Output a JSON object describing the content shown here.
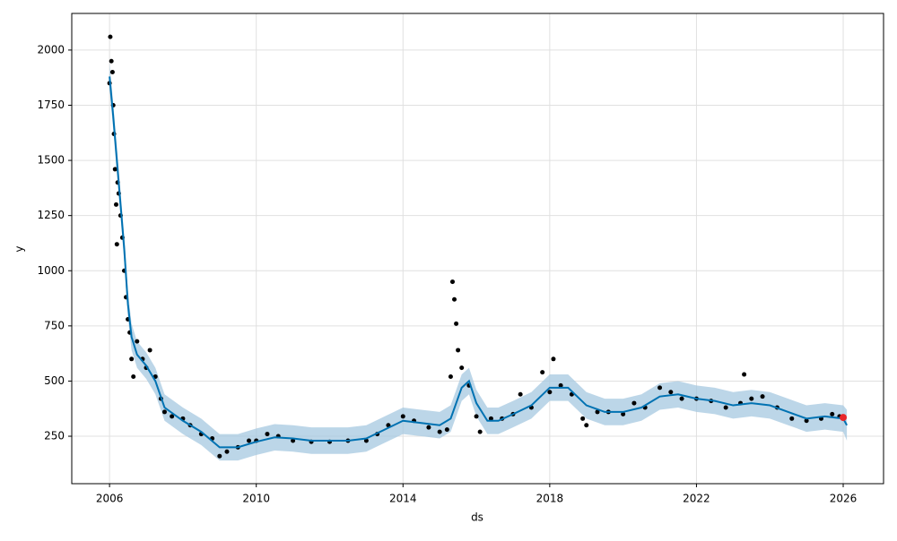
{
  "chart_data": {
    "type": "forecast",
    "x_label": "ds",
    "y_label": "y",
    "xlim": [
      2004.97,
      2027.1
    ],
    "ylim": [
      35,
      2166
    ],
    "xticks": [
      2006,
      2010,
      2014,
      2018,
      2022,
      2026
    ],
    "yticks": [
      250,
      500,
      750,
      1000,
      1250,
      1500,
      1750,
      2000
    ],
    "grid": true,
    "points": {
      "color": "#000000",
      "x": [
        2006.0,
        2006.02,
        2006.05,
        2006.08,
        2006.1,
        2006.12,
        2006.15,
        2006.18,
        2006.2,
        2006.22,
        2006.25,
        2006.3,
        2006.35,
        2006.4,
        2006.45,
        2006.5,
        2006.55,
        2006.6,
        2006.65,
        2006.75,
        2006.9,
        2007.0,
        2007.1,
        2007.25,
        2007.4,
        2007.5,
        2007.7,
        2008.0,
        2008.2,
        2008.5,
        2008.8,
        2009.0,
        2009.2,
        2009.5,
        2009.8,
        2010.0,
        2010.3,
        2010.6,
        2011.0,
        2011.5,
        2012.0,
        2012.5,
        2013.0,
        2013.3,
        2013.6,
        2014.0,
        2014.3,
        2014.7,
        2015.0,
        2015.2,
        2015.3,
        2015.35,
        2015.4,
        2015.45,
        2015.5,
        2015.6,
        2015.8,
        2016.0,
        2016.1,
        2016.4,
        2016.7,
        2017.0,
        2017.2,
        2017.5,
        2017.8,
        2018.0,
        2018.1,
        2018.3,
        2018.6,
        2018.9,
        2019.0,
        2019.3,
        2019.6,
        2020.0,
        2020.3,
        2020.6,
        2021.0,
        2021.3,
        2021.6,
        2022.0,
        2022.4,
        2022.8,
        2023.2,
        2023.3,
        2023.5,
        2023.8,
        2024.2,
        2024.6,
        2025.0,
        2025.4,
        2025.7,
        2025.9
      ],
      "y": [
        1850,
        2060,
        1950,
        1900,
        1750,
        1620,
        1460,
        1300,
        1120,
        1400,
        1350,
        1250,
        1150,
        1000,
        880,
        780,
        720,
        600,
        520,
        680,
        600,
        560,
        640,
        520,
        420,
        360,
        340,
        330,
        300,
        260,
        240,
        160,
        180,
        200,
        230,
        230,
        260,
        250,
        230,
        225,
        225,
        230,
        230,
        260,
        300,
        340,
        320,
        290,
        270,
        280,
        520,
        950,
        870,
        760,
        640,
        560,
        480,
        340,
        270,
        330,
        330,
        350,
        440,
        380,
        540,
        450,
        600,
        480,
        440,
        330,
        300,
        360,
        360,
        350,
        400,
        380,
        470,
        450,
        420,
        420,
        410,
        380,
        400,
        530,
        420,
        430,
        380,
        330,
        320,
        330,
        350,
        340
      ]
    },
    "forecast": {
      "color": "#0072b2",
      "band_color": "#a6c8e0",
      "x": [
        2006.0,
        2006.1,
        2006.2,
        2006.3,
        2006.4,
        2006.5,
        2006.6,
        2006.75,
        2007.0,
        2007.25,
        2007.5,
        2008.0,
        2008.5,
        2009.0,
        2009.5,
        2010.0,
        2010.5,
        2011.0,
        2011.5,
        2012.0,
        2012.5,
        2013.0,
        2013.5,
        2014.0,
        2014.5,
        2015.0,
        2015.3,
        2015.6,
        2015.8,
        2016.0,
        2016.3,
        2016.6,
        2017.0,
        2017.5,
        2018.0,
        2018.5,
        2019.0,
        2019.5,
        2020.0,
        2020.5,
        2021.0,
        2021.5,
        2022.0,
        2022.5,
        2023.0,
        2023.5,
        2024.0,
        2024.5,
        2025.0,
        2025.5,
        2026.0,
        2026.1
      ],
      "values": [
        1880,
        1700,
        1500,
        1300,
        1100,
        850,
        700,
        620,
        570,
        500,
        380,
        320,
        270,
        200,
        200,
        225,
        245,
        240,
        230,
        230,
        230,
        240,
        280,
        320,
        310,
        300,
        330,
        470,
        500,
        400,
        320,
        320,
        350,
        390,
        470,
        470,
        390,
        360,
        360,
        380,
        430,
        440,
        420,
        410,
        390,
        400,
        390,
        360,
        330,
        340,
        330,
        300
      ],
      "lower": [
        1820,
        1640,
        1440,
        1240,
        1040,
        790,
        640,
        560,
        510,
        440,
        320,
        260,
        210,
        140,
        140,
        165,
        185,
        180,
        170,
        170,
        170,
        180,
        220,
        260,
        250,
        240,
        270,
        410,
        440,
        340,
        260,
        260,
        290,
        330,
        410,
        410,
        330,
        300,
        300,
        320,
        370,
        380,
        360,
        350,
        330,
        340,
        330,
        300,
        270,
        280,
        270,
        230
      ],
      "upper": [
        1940,
        1760,
        1560,
        1360,
        1160,
        910,
        760,
        680,
        630,
        560,
        440,
        380,
        330,
        260,
        260,
        285,
        305,
        300,
        290,
        290,
        290,
        300,
        340,
        380,
        370,
        360,
        390,
        530,
        560,
        460,
        380,
        380,
        410,
        450,
        530,
        530,
        450,
        420,
        420,
        440,
        490,
        500,
        480,
        470,
        450,
        460,
        450,
        420,
        390,
        400,
        390,
        370
      ]
    },
    "last_point": {
      "color": "#e8262a",
      "x": 2026.0,
      "y": 335
    }
  }
}
